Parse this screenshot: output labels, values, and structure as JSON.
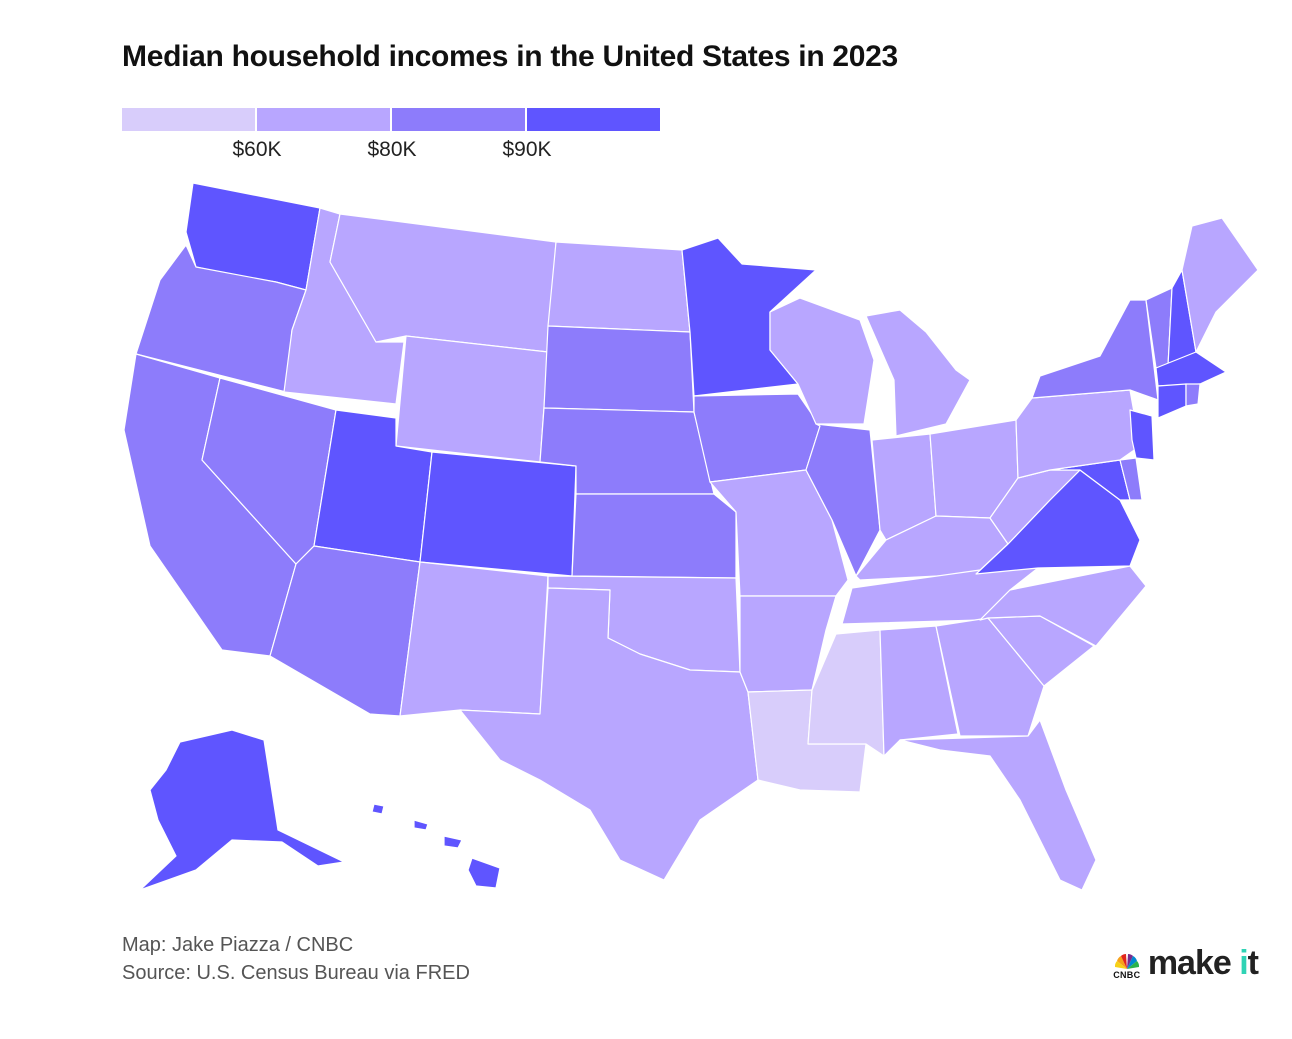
{
  "title": "Median household incomes in the United States in 2023",
  "legend": {
    "colors": [
      "#d8cdfb",
      "#b8a6ff",
      "#8d7cfb",
      "#5f55ff"
    ],
    "labels": [
      "$60K",
      "$80K",
      "$90K"
    ]
  },
  "map_data": {
    "type": "choropleth",
    "region": "United States",
    "year": 2023,
    "bins": [
      "under $60K",
      "$60K–$80K",
      "$80K–$90K",
      "$90K and over"
    ],
    "states_by_bin": {
      "under $60K": [
        "LA",
        "MS"
      ],
      "$60K–$80K": [
        "ID",
        "MT",
        "WY",
        "ND",
        "NM",
        "TX",
        "OK",
        "MO",
        "AR",
        "TN",
        "KY",
        "AL",
        "GA",
        "SC",
        "NC",
        "FL",
        "WI",
        "MI",
        "IN",
        "OH",
        "WV",
        "PA",
        "ME"
      ],
      "$80K–$90K": [
        "OR",
        "NV",
        "CA",
        "AZ",
        "SD",
        "NE",
        "KS",
        "IA",
        "IL",
        "NY",
        "VT",
        "RI",
        "DE"
      ],
      "$90K and over": [
        "WA",
        "UT",
        "CO",
        "MN",
        "VA",
        "MD",
        "NJ",
        "CT",
        "MA",
        "NH",
        "AK",
        "HI"
      ]
    }
  },
  "credits": {
    "map": "Map: Jake Piazza / CNBC",
    "source": "Source: U.S. Census Bureau via FRED"
  },
  "brand": {
    "logo_text": "CNBC",
    "make": "make ",
    "it_i": "i",
    "it_t": "t"
  }
}
